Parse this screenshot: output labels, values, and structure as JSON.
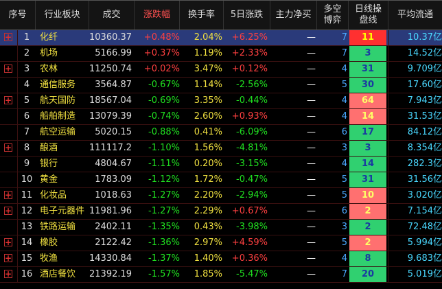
{
  "header": {
    "cols": [
      "序号",
      "行业板块",
      "成交",
      "涨跌幅",
      "换手率",
      "5日涨跌",
      "主力净买",
      "多空\n博弈",
      "日线操\n盘线",
      "平均流通"
    ],
    "active_col": 3
  },
  "rows": [
    {
      "num": "1",
      "exp": true,
      "name": "化纤",
      "amt": "10360.37",
      "pct": "+0.48%",
      "turn": "2.04%",
      "d5": "+6.25%",
      "flow": "—",
      "ls": "7",
      "day": "11",
      "day_style": "yellow",
      "cap": "10.37亿",
      "sel": true
    },
    {
      "num": "2",
      "exp": false,
      "name": "机场",
      "amt": "5166.99",
      "pct": "+0.37%",
      "turn": "1.19%",
      "d5": "+2.33%",
      "flow": "—",
      "ls": "7",
      "day": "3",
      "day_style": "green",
      "cap": "14.52亿"
    },
    {
      "num": "3",
      "exp": true,
      "name": "农林",
      "amt": "11250.74",
      "pct": "+0.02%",
      "turn": "3.47%",
      "d5": "+0.12%",
      "flow": "—",
      "ls": "4",
      "day": "31",
      "day_style": "green",
      "cap": "9.709亿"
    },
    {
      "num": "4",
      "exp": false,
      "name": "通信服务",
      "amt": "3564.87",
      "pct": "-0.67%",
      "turn": "1.14%",
      "d5": "-2.56%",
      "flow": "—",
      "ls": "5",
      "day": "30",
      "day_style": "green",
      "cap": "17.60亿"
    },
    {
      "num": "5",
      "exp": true,
      "name": "航天国防",
      "amt": "18567.04",
      "pct": "-0.69%",
      "turn": "3.35%",
      "d5": "-0.44%",
      "flow": "—",
      "ls": "4",
      "day": "64",
      "day_style": "red",
      "cap": "7.943亿"
    },
    {
      "num": "6",
      "exp": false,
      "name": "船舶制造",
      "amt": "13079.39",
      "pct": "-0.74%",
      "turn": "2.60%",
      "d5": "+0.93%",
      "flow": "—",
      "ls": "4",
      "day": "14",
      "day_style": "red",
      "cap": "31.53亿"
    },
    {
      "num": "7",
      "exp": false,
      "name": "航空运输",
      "amt": "5020.15",
      "pct": "-0.88%",
      "turn": "0.41%",
      "d5": "-6.09%",
      "flow": "—",
      "ls": "6",
      "day": "17",
      "day_style": "green",
      "cap": "84.12亿"
    },
    {
      "num": "8",
      "exp": true,
      "name": "酿酒",
      "amt": "111117.24",
      "pct": "-1.10%",
      "turn": "1.56%",
      "d5": "-4.81%",
      "flow": "—",
      "ls": "3",
      "day": "3",
      "day_style": "green",
      "cap": "8.354亿"
    },
    {
      "num": "9",
      "exp": false,
      "name": "银行",
      "amt": "4804.67",
      "pct": "-1.11%",
      "turn": "0.20%",
      "d5": "-3.15%",
      "flow": "—",
      "ls": "4",
      "day": "14",
      "day_style": "green",
      "cap": "282.3亿"
    },
    {
      "num": "10",
      "exp": false,
      "name": "黄金",
      "amt": "1783.09",
      "pct": "-1.12%",
      "turn": "1.72%",
      "d5": "-0.47%",
      "flow": "—",
      "ls": "5",
      "day": "31",
      "day_style": "green",
      "cap": "31.56亿"
    },
    {
      "num": "11",
      "exp": true,
      "name": "化妆品",
      "amt": "1018.63",
      "pct": "-1.27%",
      "turn": "2.20%",
      "d5": "-2.94%",
      "flow": "—",
      "ls": "5",
      "day": "10",
      "day_style": "red",
      "cap": "3.020亿"
    },
    {
      "num": "12",
      "exp": true,
      "name": "电子元器件",
      "amt": "11981.96",
      "pct": "-1.27%",
      "turn": "2.29%",
      "d5": "+0.67%",
      "flow": "—",
      "ls": "6",
      "day": "2",
      "day_style": "red",
      "cap": "7.154亿"
    },
    {
      "num": "13",
      "exp": false,
      "name": "铁路运输",
      "amt": "2402.11",
      "pct": "-1.35%",
      "turn": "0.43%",
      "d5": "-3.98%",
      "flow": "—",
      "ls": "3",
      "day": "2",
      "day_style": "green",
      "cap": "72.48亿"
    },
    {
      "num": "14",
      "exp": true,
      "name": "橡胶",
      "amt": "2122.42",
      "pct": "-1.36%",
      "turn": "2.97%",
      "d5": "+4.59%",
      "flow": "—",
      "ls": "5",
      "day": "2",
      "day_style": "red",
      "cap": "5.994亿"
    },
    {
      "num": "15",
      "exp": true,
      "name": "牧渔",
      "amt": "14330.84",
      "pct": "-1.37%",
      "turn": "1.40%",
      "d5": "+0.36%",
      "flow": "—",
      "ls": "4",
      "day": "8",
      "day_style": "green",
      "cap": "9.683亿"
    },
    {
      "num": "16",
      "exp": true,
      "name": "酒店餐饮",
      "amt": "21392.19",
      "pct": "-1.57%",
      "turn": "1.85%",
      "d5": "-5.47%",
      "flow": "—",
      "ls": "7",
      "day": "20",
      "day_style": "green",
      "cap": "5.019亿"
    }
  ],
  "expand_glyph": "+",
  "colors": {
    "up": "#ff4040",
    "down": "#20e020",
    "name": "#f0e040",
    "selected_row": "#2a3a7a"
  }
}
